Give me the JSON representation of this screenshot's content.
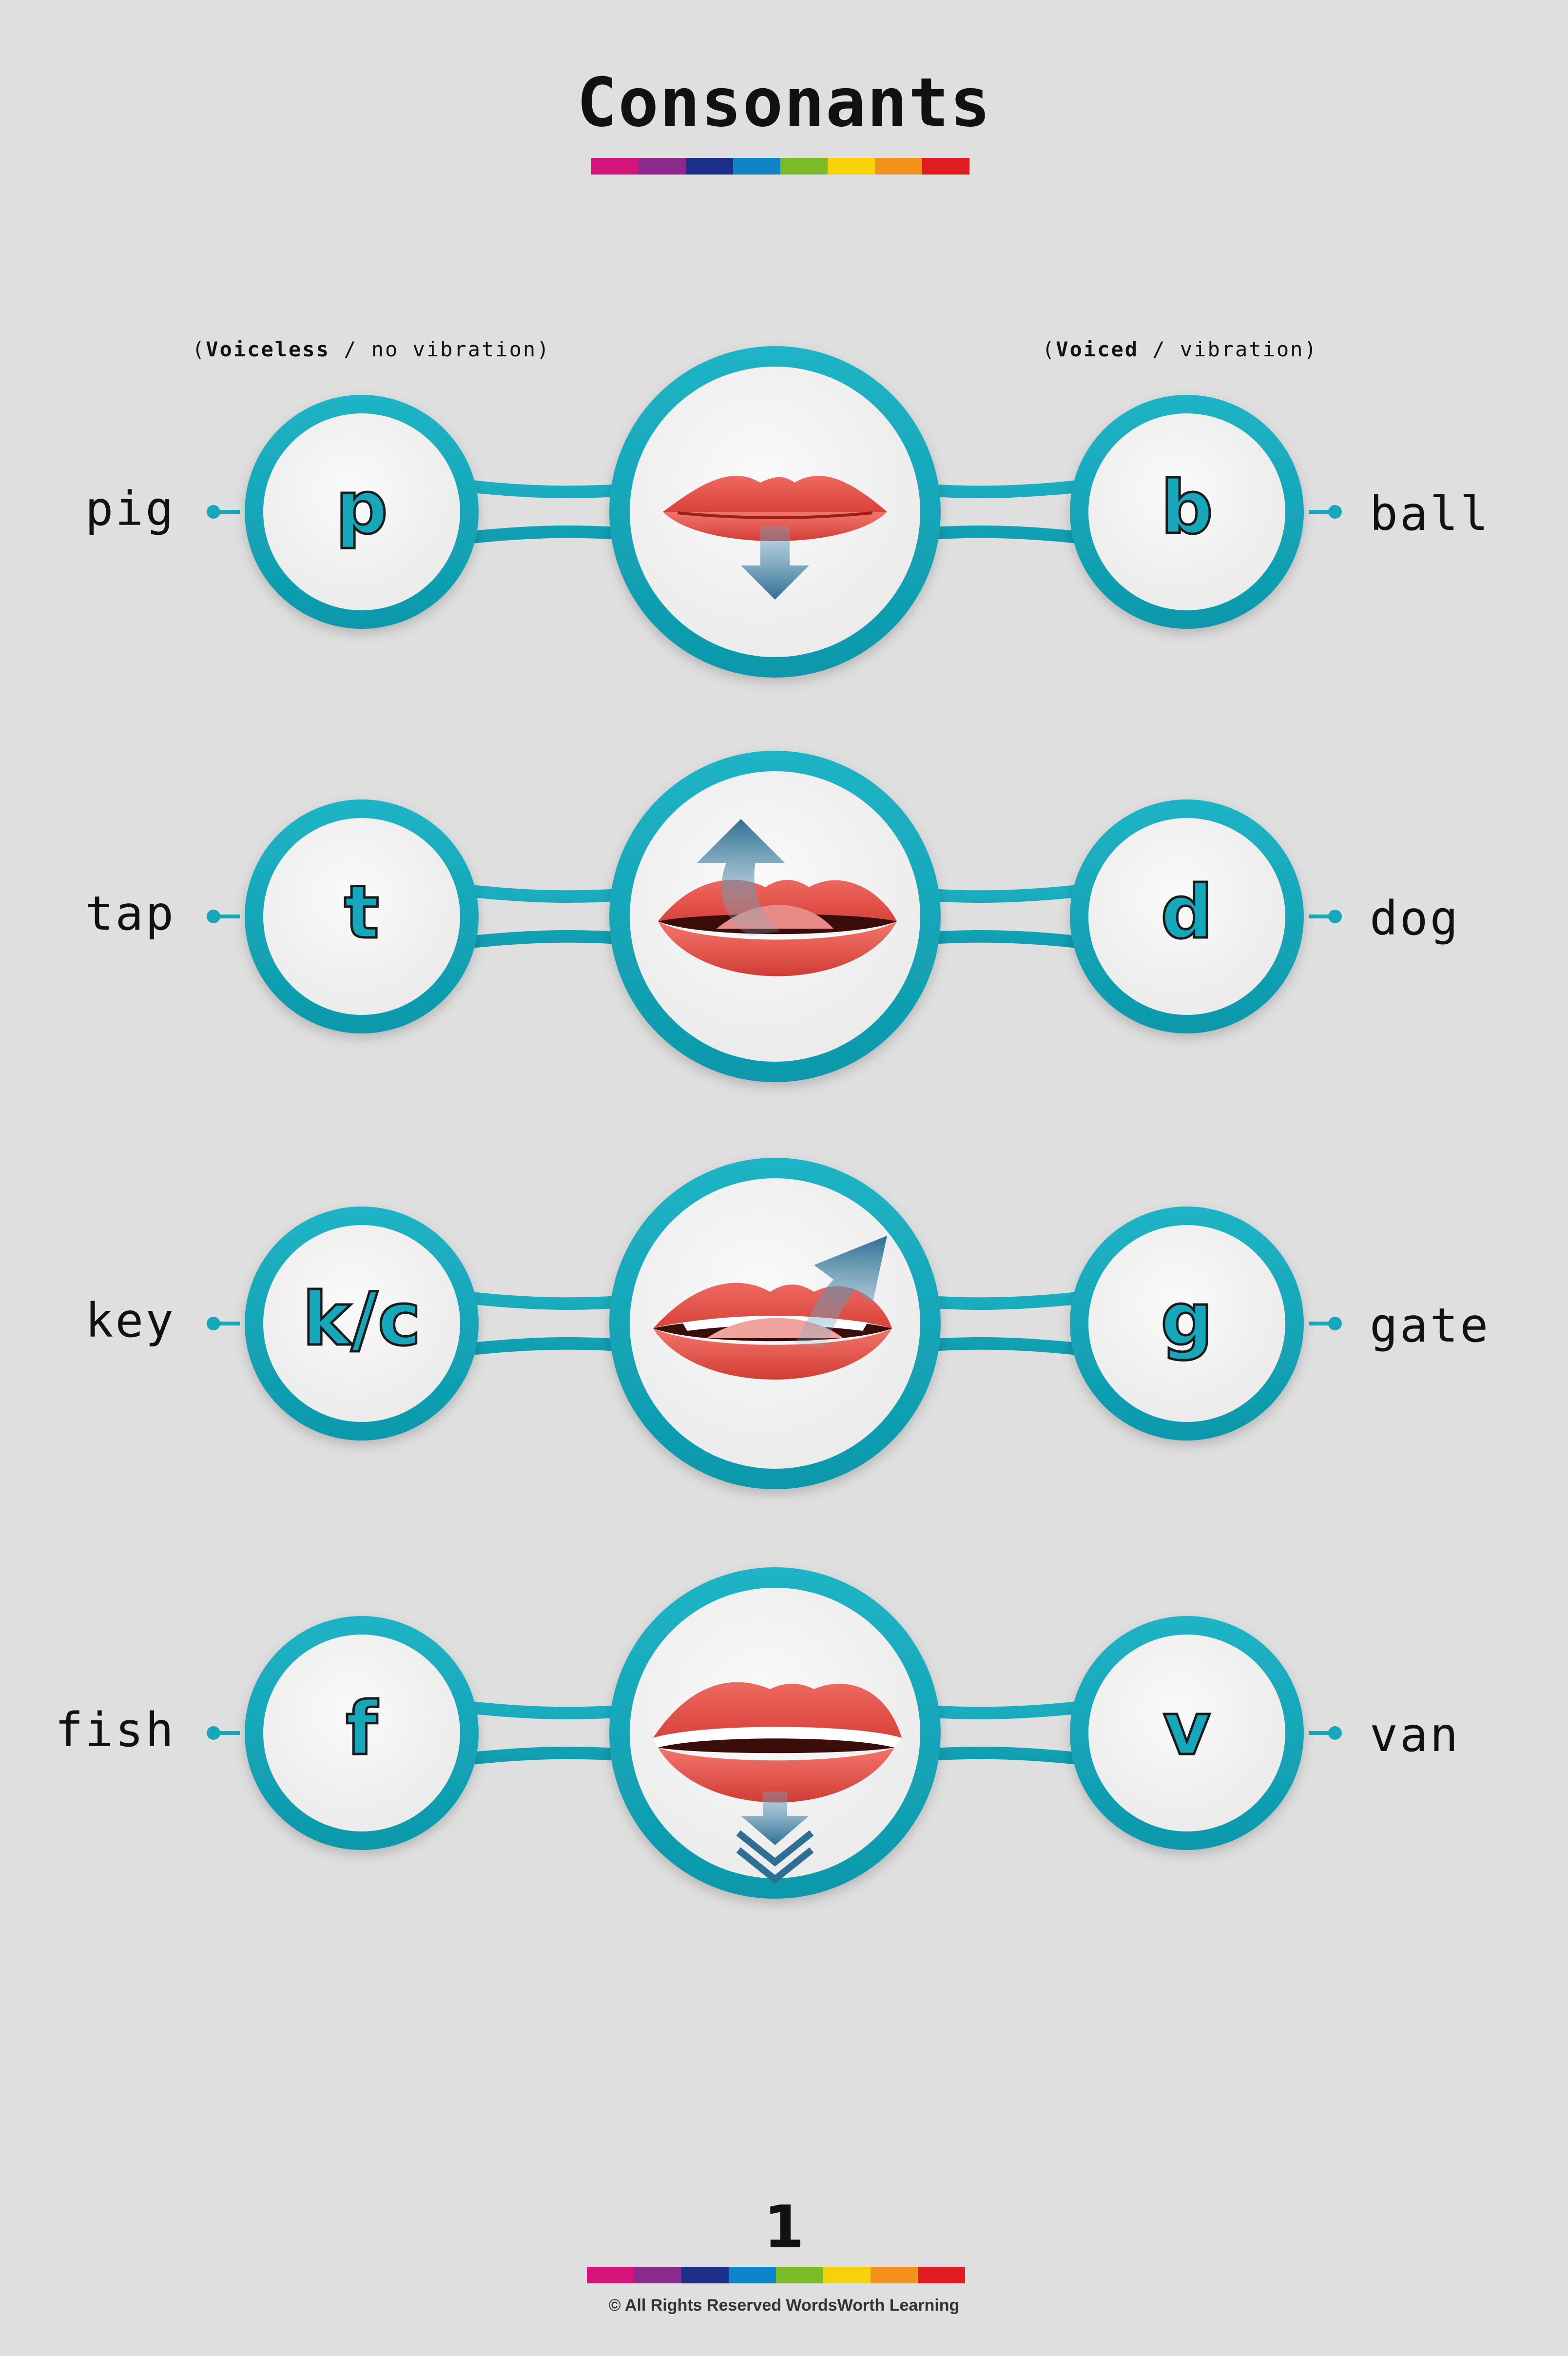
{
  "title": "Consonants",
  "legend": {
    "voiceless_bold": "Voiceless",
    "voiceless_rest": " / no vibration",
    "voiced_bold": "Voiced",
    "voiced_rest": " / vibration"
  },
  "rows": [
    {
      "voiceless_letter": "p",
      "voiceless_word": "pig",
      "voiced_letter": "b",
      "voiced_word": "ball",
      "mouth_icon": "closed-lips-down-arrow-icon"
    },
    {
      "voiceless_letter": "t",
      "voiceless_word": "tap",
      "voiced_letter": "d",
      "voiced_word": "dog",
      "mouth_icon": "tongue-up-arrow-icon"
    },
    {
      "voiceless_letter": "k/c",
      "voiceless_word": "key",
      "voiced_letter": "g",
      "voiced_word": "gate",
      "mouth_icon": "back-tongue-up-arrow-icon"
    },
    {
      "voiceless_letter": "f",
      "voiceless_word": "fish",
      "voiced_letter": "v",
      "voiced_word": "van",
      "mouth_icon": "teeth-lip-down-arrow-icon"
    }
  ],
  "page_number": "1",
  "copyright": "© All Rights Reserved WordsWorth Learning",
  "colors": {
    "accent": "#16a7ba",
    "stripe": [
      "#d4137b",
      "#8b2a8d",
      "#1e2f8a",
      "#0f85c9",
      "#7cbb28",
      "#f7d20b",
      "#f3921c",
      "#e11b22"
    ]
  }
}
